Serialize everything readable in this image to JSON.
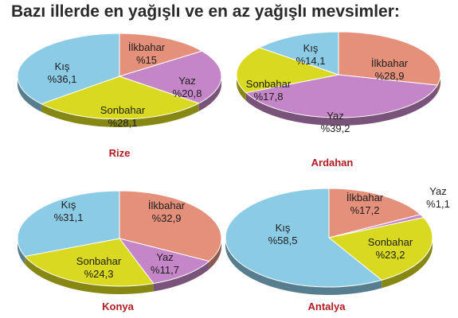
{
  "title": "Bazı illerde en yağışlı ve en az yağışlı mevsimler:",
  "colors": {
    "Kış": "#8ccbe6",
    "İlkbahar": "#e4907a",
    "Yaz": "#c586c7",
    "Sonbahar": "#dad921",
    "city_label": "#b01c22"
  },
  "chart_data": [
    {
      "type": "pie",
      "city": "Rize",
      "slices": [
        {
          "label": "İlkbahar",
          "value_text": "%15",
          "value": 15.0
        },
        {
          "label": "Yaz",
          "value_text": "%20,8",
          "value": 20.8
        },
        {
          "label": "Sonbahar",
          "value_text": "%28,1",
          "value": 28.1
        },
        {
          "label": "Kış",
          "value_text": "%36,1",
          "value": 36.1
        }
      ]
    },
    {
      "type": "pie",
      "city": "Ardahan",
      "slices": [
        {
          "label": "İlkbahar",
          "value_text": "%28,9",
          "value": 28.9
        },
        {
          "label": "Yaz",
          "value_text": "%39,2",
          "value": 39.2
        },
        {
          "label": "Sonbahar",
          "value_text": "%17,8",
          "value": 17.8
        },
        {
          "label": "Kış",
          "value_text": "%14,1",
          "value": 14.1
        }
      ]
    },
    {
      "type": "pie",
      "city": "Konya",
      "slices": [
        {
          "label": "İlkbahar",
          "value_text": "%32,9",
          "value": 32.9
        },
        {
          "label": "Yaz",
          "value_text": "%11,7",
          "value": 11.7
        },
        {
          "label": "Sonbahar",
          "value_text": "%24,3",
          "value": 24.3
        },
        {
          "label": "Kış",
          "value_text": "%31,1",
          "value": 31.1
        }
      ]
    },
    {
      "type": "pie",
      "city": "Antalya",
      "slices": [
        {
          "label": "İlkbahar",
          "value_text": "%17,2",
          "value": 17.2
        },
        {
          "label": "Yaz",
          "value_text": "%1,1",
          "value": 1.1
        },
        {
          "label": "Sonbahar",
          "value_text": "%23,2",
          "value": 23.2
        },
        {
          "label": "Kış",
          "value_text": "%58,5",
          "value": 58.5
        }
      ]
    }
  ]
}
